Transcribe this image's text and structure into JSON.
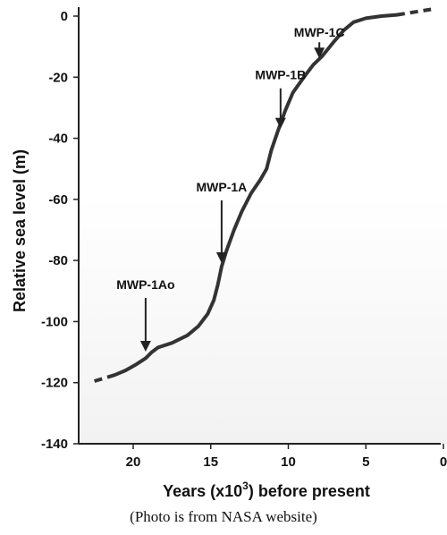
{
  "chart_data": {
    "type": "line",
    "xlabel": "Years (x10",
    "xlabel_sup": "3",
    "xlabel_suffix": ") before present",
    "ylabel": "Relative sea level (m)",
    "xlim": [
      22.5,
      0
    ],
    "ylim": [
      -140,
      3
    ],
    "x_ticks": [
      20,
      15,
      10,
      5,
      0
    ],
    "y_ticks": [
      0,
      -20,
      -40,
      -60,
      -80,
      -100,
      -120,
      -140
    ],
    "grid": false,
    "series": [
      {
        "solid": [
          {
            "x": 21.2,
            "y": -117.5
          },
          {
            "x": 20.5,
            "y": -116
          },
          {
            "x": 19.8,
            "y": -114
          },
          {
            "x": 19.2,
            "y": -112
          },
          {
            "x": 18.8,
            "y": -110
          },
          {
            "x": 18.4,
            "y": -108.5
          },
          {
            "x": 17.5,
            "y": -107
          },
          {
            "x": 16.5,
            "y": -104.5
          },
          {
            "x": 15.8,
            "y": -101.5
          },
          {
            "x": 15.2,
            "y": -97.5
          },
          {
            "x": 14.8,
            "y": -93
          },
          {
            "x": 14.55,
            "y": -88
          },
          {
            "x": 14.3,
            "y": -82
          },
          {
            "x": 14.0,
            "y": -77
          },
          {
            "x": 13.5,
            "y": -70
          },
          {
            "x": 13.0,
            "y": -64
          },
          {
            "x": 12.4,
            "y": -58
          },
          {
            "x": 11.8,
            "y": -53.5
          },
          {
            "x": 11.4,
            "y": -50
          },
          {
            "x": 11.1,
            "y": -44
          },
          {
            "x": 10.7,
            "y": -38
          },
          {
            "x": 10.2,
            "y": -31
          },
          {
            "x": 9.7,
            "y": -25
          },
          {
            "x": 9.0,
            "y": -20
          },
          {
            "x": 8.4,
            "y": -16
          },
          {
            "x": 7.8,
            "y": -13
          },
          {
            "x": 7.0,
            "y": -8
          },
          {
            "x": 6.4,
            "y": -4.5
          },
          {
            "x": 5.8,
            "y": -2
          },
          {
            "x": 5.0,
            "y": -0.7
          },
          {
            "x": 4.0,
            "y": 0
          },
          {
            "x": 3.0,
            "y": 0.4
          }
        ],
        "dashed_start": [
          {
            "x": 22.5,
            "y": -119.5
          },
          {
            "x": 21.2,
            "y": -117.5
          }
        ],
        "dashed_end": [
          {
            "x": 3.0,
            "y": 0.4
          },
          {
            "x": 0.8,
            "y": 2.2
          }
        ]
      }
    ],
    "annotations": [
      {
        "label": "MWP-1Ao",
        "x": 19.2,
        "y": -111
      },
      {
        "label": "MWP-1A",
        "x": 14.3,
        "y": -82
      },
      {
        "label": "MWP-1B",
        "x": 10.5,
        "y": -38
      },
      {
        "label": "MWP-1C",
        "x": 8.0,
        "y": -15
      }
    ]
  },
  "caption": "(Photo is from NASA website)"
}
